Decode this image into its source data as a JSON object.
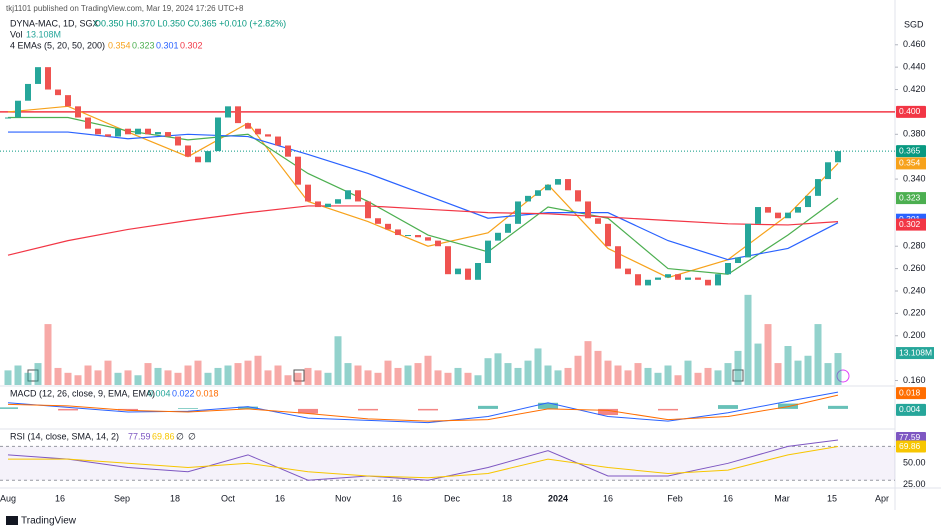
{
  "chart_data": {
    "type": "candlestick",
    "publisher": "tkj1101 published on TradingView.com, Mar 19, 2024 17:26 UTC+8",
    "symbol": "DYNA-MAC, 1D, SGX",
    "ohlc": "O0.350 H0.370 L0.350 C0.365 +0.010 (+2.82%)",
    "volume_label": "Vol",
    "volume_value": "13.108M",
    "ema_label": "4 EMAs (5, 20, 50, 200)",
    "macd_label": "MACD (12, 26, close, 9, EMA, EMA)",
    "macd_values": [
      "0.004",
      "0.022",
      "0.018"
    ],
    "rsi_label": "RSI (14, close, SMA, 14, 2)",
    "rsi_values": [
      "77.59",
      "69.86",
      "∅",
      "∅"
    ],
    "currency": "SGD",
    "footer": "TradingView",
    "time_labels": [
      "Aug",
      "16",
      "Sep",
      "18",
      "Oct",
      "16",
      "Nov",
      "16",
      "Dec",
      "18",
      "2024",
      "16",
      "Feb",
      "16",
      "Mar",
      "15",
      "Apr"
    ],
    "up_color": "#26a69a",
    "down_color": "#ef5350",
    "xlim": [
      -0.8,
      88.7
    ],
    "ylim": [
      0.156,
      0.5
    ],
    "grid": false,
    "yticks": [
      {
        "value": 0.46,
        "label": "0.460"
      },
      {
        "value": 0.44,
        "label": "0.440"
      },
      {
        "value": 0.42,
        "label": "0.420"
      },
      {
        "value": 0.38,
        "label": "0.380"
      },
      {
        "value": 0.34,
        "label": "0.340"
      },
      {
        "value": 0.28,
        "label": "0.280"
      },
      {
        "value": 0.26,
        "label": "0.260"
      },
      {
        "value": 0.24,
        "label": "0.240"
      },
      {
        "value": 0.22,
        "label": "0.220"
      },
      {
        "value": 0.2,
        "label": "0.200"
      },
      {
        "value": 0.16,
        "label": "0.160"
      }
    ],
    "close": [
      0.395,
      0.41,
      0.425,
      0.44,
      0.42,
      0.415,
      0.405,
      0.395,
      0.385,
      0.38,
      0.378,
      0.385,
      0.38,
      0.385,
      0.38,
      0.382,
      0.378,
      0.37,
      0.36,
      0.355,
      0.365,
      0.395,
      0.405,
      0.39,
      0.385,
      0.38,
      0.378,
      0.37,
      0.36,
      0.335,
      0.32,
      0.315,
      0.318,
      0.322,
      0.33,
      0.32,
      0.305,
      0.3,
      0.295,
      0.29,
      0.29,
      0.288,
      0.285,
      0.28,
      0.255,
      0.26,
      0.25,
      0.265,
      0.285,
      0.292,
      0.3,
      0.32,
      0.325,
      0.33,
      0.335,
      0.34,
      0.33,
      0.32,
      0.305,
      0.3,
      0.28,
      0.26,
      0.255,
      0.245,
      0.25,
      0.252,
      0.255,
      0.25,
      0.252,
      0.25,
      0.245,
      0.255,
      0.265,
      0.27,
      0.3,
      0.315,
      0.31,
      0.305,
      0.31,
      0.315,
      0.325,
      0.34,
      0.355,
      0.365
    ],
    "volume": [
      6,
      8,
      5,
      9,
      25,
      7,
      5,
      4,
      8,
      6,
      10,
      5,
      6,
      4,
      9,
      7,
      6,
      5,
      8,
      10,
      5,
      7,
      8,
      9,
      10,
      12,
      6,
      8,
      4,
      5,
      7,
      6,
      5,
      20,
      9,
      8,
      6,
      5,
      10,
      7,
      8,
      9,
      12,
      6,
      5,
      7,
      5,
      4,
      11,
      13,
      9,
      7,
      10,
      15,
      8,
      6,
      7,
      12,
      18,
      14,
      10,
      8,
      6,
      9,
      7,
      5,
      8,
      4,
      10,
      5,
      7,
      6,
      9,
      14,
      37,
      17,
      25,
      9,
      16,
      10,
      12,
      25,
      9,
      13.108
    ],
    "volume_ylim": [
      0,
      158
    ],
    "resistance": {
      "value": 0.4,
      "label": "0.400",
      "color": "#f23645"
    },
    "last": {
      "value": 0.365,
      "label": "0.365",
      "color": "#089981"
    },
    "emas": {
      "x": [
        0,
        6,
        12,
        18,
        24,
        30,
        36,
        42,
        48,
        54,
        60,
        66,
        72,
        78,
        83
      ],
      "series": [
        {
          "name": "0.354",
          "color": "#f7a21b",
          "values": [
            0.4,
            0.405,
            0.382,
            0.36,
            0.39,
            0.32,
            0.302,
            0.28,
            0.292,
            0.335,
            0.278,
            0.252,
            0.268,
            0.308,
            0.354
          ]
        },
        {
          "name": "0.323",
          "color": "#4caf50",
          "values": [
            0.395,
            0.395,
            0.383,
            0.375,
            0.38,
            0.345,
            0.32,
            0.29,
            0.275,
            0.315,
            0.305,
            0.26,
            0.255,
            0.29,
            0.323
          ]
        },
        {
          "name": "0.301",
          "color": "#2962ff",
          "values": [
            0.382,
            0.382,
            0.376,
            0.38,
            0.378,
            0.362,
            0.345,
            0.325,
            0.305,
            0.31,
            0.31,
            0.285,
            0.268,
            0.278,
            0.301
          ]
        },
        {
          "name": "0.302",
          "color": "#f23645",
          "values": [
            0.272,
            0.285,
            0.295,
            0.303,
            0.31,
            0.316,
            0.316,
            0.313,
            0.31,
            0.309,
            0.306,
            0.303,
            0.3,
            0.299,
            0.302
          ]
        }
      ]
    },
    "macd": {
      "ylim": [
        -0.025,
        0.03
      ],
      "series": [
        {
          "name": "MACD",
          "color": "#2962ff",
          "values": [
            0.008,
            0.002,
            -0.004,
            -0.003,
            0.003,
            -0.012,
            -0.015,
            -0.018,
            -0.01,
            0.008,
            -0.01,
            -0.016,
            -0.005,
            0.01,
            0.022
          ]
        },
        {
          "name": "Signal",
          "color": "#ff6d00",
          "values": [
            0.006,
            0.004,
            -0.002,
            -0.004,
            0,
            -0.006,
            -0.013,
            -0.016,
            -0.014,
            0,
            -0.002,
            -0.014,
            -0.01,
            0.003,
            0.018
          ]
        }
      ],
      "histogram": [
        0.002,
        -0.002,
        -0.002,
        0.001,
        0.003,
        -0.006,
        -0.002,
        -0.002,
        0.004,
        0.008,
        -0.008,
        -0.002,
        0.005,
        0.007,
        0.004
      ],
      "badges": [
        {
          "value": 0.018,
          "label": "0.018",
          "color": "#ff6d00"
        },
        {
          "value": 0.004,
          "label": "0.004",
          "color": "#26a69a"
        }
      ]
    },
    "rsi": {
      "ylim": [
        22,
        87
      ],
      "yticks": [
        {
          "value": 50,
          "label": "50.00"
        },
        {
          "value": 25,
          "label": "25.00"
        }
      ],
      "band": [
        30,
        70
      ],
      "series": [
        {
          "name": "RSI",
          "color": "#7e57c2",
          "values": [
            60,
            55,
            45,
            40,
            60,
            30,
            35,
            30,
            45,
            65,
            35,
            35,
            50,
            70,
            77.59
          ]
        },
        {
          "name": "SMA",
          "color": "#f7c600",
          "values": [
            55,
            55,
            50,
            45,
            50,
            40,
            35,
            33,
            38,
            55,
            45,
            38,
            42,
            60,
            69.86
          ]
        }
      ],
      "badges": [
        {
          "value": 77.59,
          "label": "77.59",
          "color": "#7e57c2"
        },
        {
          "value": 69.86,
          "label": "69.86",
          "color": "#f7c600"
        }
      ]
    }
  }
}
